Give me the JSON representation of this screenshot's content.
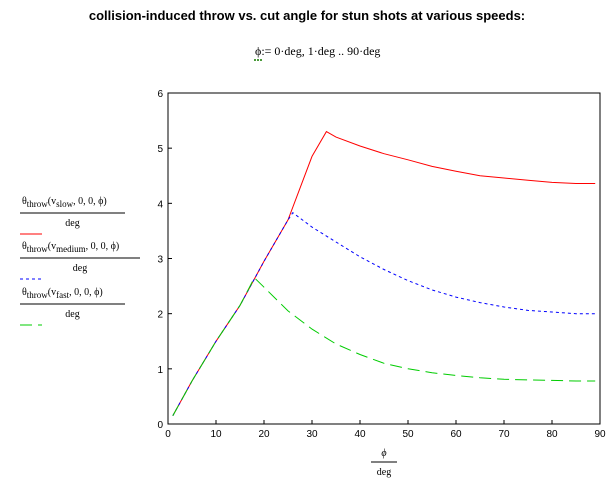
{
  "title": "collision-induced throw vs. cut angle for stun shots at various speeds:",
  "range_definition": {
    "var": "ϕ",
    "expr": ":= 0·deg, 1·deg .. 90·deg"
  },
  "colors": {
    "slow": "#ff0000",
    "medium": "#0000ff",
    "fast": "#00cc00"
  },
  "chart_data": {
    "type": "line",
    "title": "",
    "xlabel": {
      "num": "ϕ",
      "den": "deg"
    },
    "ylabel_entries": [
      {
        "theta": "θ",
        "sub": "throw",
        "arg": "v",
        "argsub": "slow",
        "rest": ", 0, 0, ϕ",
        "den": "deg"
      },
      {
        "theta": "θ",
        "sub": "throw",
        "arg": "v",
        "argsub": "medium",
        "rest": ", 0, 0, ϕ",
        "den": "deg"
      },
      {
        "theta": "θ",
        "sub": "throw",
        "arg": "v",
        "argsub": "fast",
        "rest": ", 0, 0, ϕ",
        "den": "deg"
      }
    ],
    "xlim": [
      0,
      90
    ],
    "ylim": [
      0,
      6
    ],
    "xticks": [
      "0",
      "10",
      "20",
      "30",
      "40",
      "50",
      "60",
      "70",
      "80",
      "90"
    ],
    "yticks": [
      "0",
      "1",
      "2",
      "3",
      "4",
      "5",
      "6"
    ],
    "series": [
      {
        "key": "slow",
        "x": [
          1,
          5,
          10,
          15,
          20,
          25,
          30,
          33,
          35,
          40,
          45,
          50,
          55,
          60,
          65,
          70,
          75,
          80,
          85,
          89
        ],
        "y": [
          0.15,
          0.78,
          1.5,
          2.15,
          2.95,
          3.7,
          4.85,
          5.3,
          5.2,
          5.04,
          4.9,
          4.79,
          4.67,
          4.58,
          4.5,
          4.46,
          4.42,
          4.38,
          4.36,
          4.36
        ]
      },
      {
        "key": "medium",
        "x": [
          1,
          5,
          10,
          15,
          20,
          25,
          26,
          30,
          35,
          40,
          45,
          50,
          55,
          60,
          65,
          70,
          75,
          80,
          85,
          89
        ],
        "y": [
          0.15,
          0.78,
          1.5,
          2.15,
          2.95,
          3.7,
          3.83,
          3.57,
          3.3,
          3.03,
          2.8,
          2.6,
          2.43,
          2.3,
          2.2,
          2.12,
          2.06,
          2.03,
          2.0,
          2.0
        ]
      },
      {
        "key": "fast",
        "x": [
          1,
          5,
          10,
          15,
          18,
          20,
          25,
          30,
          35,
          40,
          45,
          50,
          55,
          60,
          65,
          70,
          75,
          80,
          85,
          89
        ],
        "y": [
          0.15,
          0.78,
          1.5,
          2.15,
          2.65,
          2.48,
          2.05,
          1.72,
          1.45,
          1.26,
          1.1,
          1.0,
          0.93,
          0.88,
          0.84,
          0.81,
          0.8,
          0.79,
          0.78,
          0.78
        ]
      }
    ]
  }
}
